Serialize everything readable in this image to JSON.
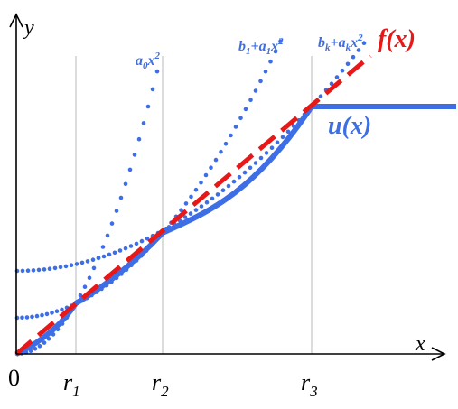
{
  "labels": {
    "y_axis": "y",
    "x_axis": "x",
    "origin": "0",
    "r1": "r",
    "r1_sub": "1",
    "r2": "r",
    "r2_sub": "2",
    "r3": "r",
    "r3_sub": "3",
    "f_label": "f(x)",
    "u_label": "u(x)",
    "parabola0_a": "a",
    "parabola0_a_sub": "0",
    "parabola0_x": "x",
    "parabola0_pow": "2",
    "parabola1_b": "b",
    "parabola1_b_sub": "1",
    "parabola1_plus": "+",
    "parabola1_a": "a",
    "parabola1_a_sub": "1",
    "parabola1_x": "x",
    "parabola1_pow": "2",
    "parabolak_b": "b",
    "parabolak_b_sub": "k",
    "parabolak_plus": "+",
    "parabolak_a": "a",
    "parabolak_a_sub": "k",
    "parabolak_x": "x",
    "parabolak_pow": "2"
  },
  "colors": {
    "blue": "#3d6ee6",
    "red": "#e81818",
    "axis": "#000000",
    "guide": "#b0b0b0"
  }
}
